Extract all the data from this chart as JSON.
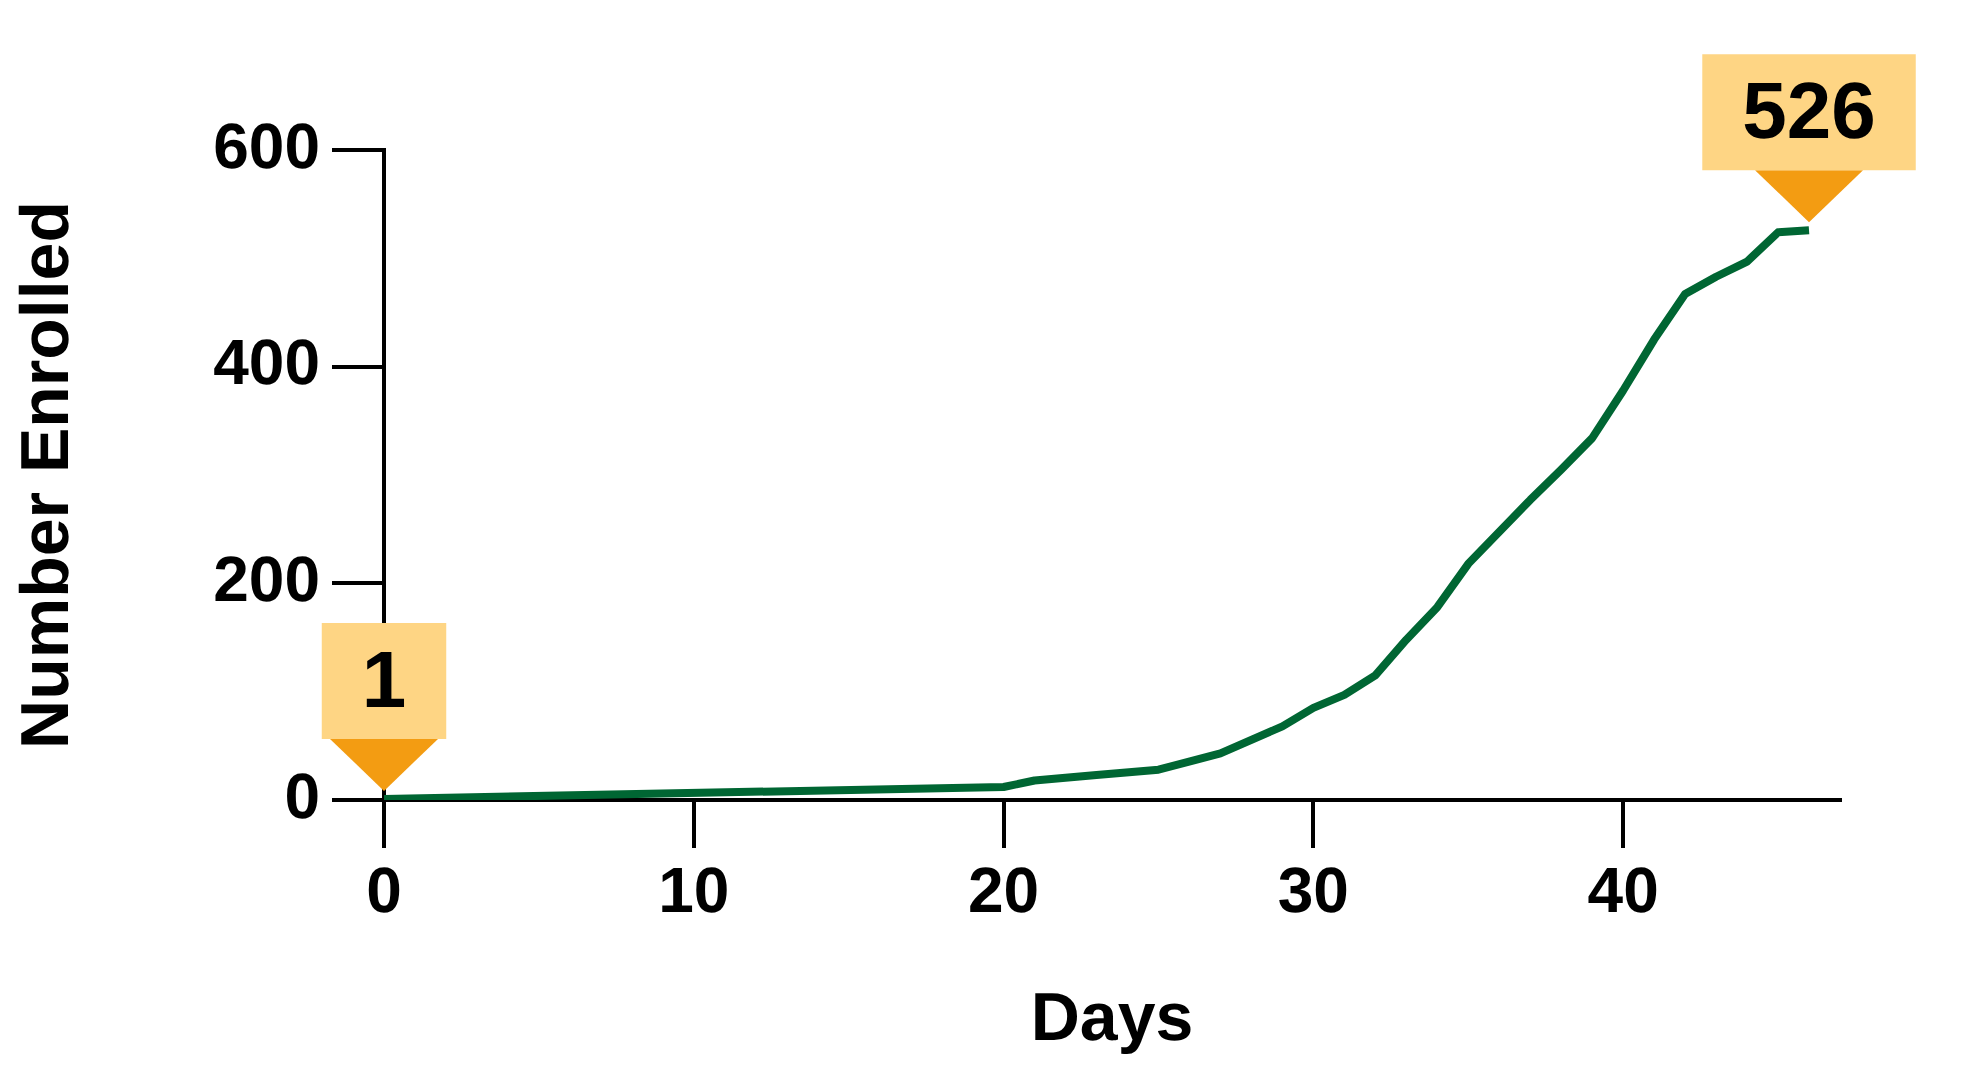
{
  "chart_data": {
    "type": "line",
    "xlabel": "Days",
    "ylabel": "Number Enrolled",
    "x": [
      0,
      20,
      21,
      23,
      25,
      27,
      29,
      30,
      31,
      32,
      33,
      34,
      35,
      37,
      38,
      39,
      40,
      41,
      42,
      43,
      44,
      45,
      46
    ],
    "series": [
      {
        "color": "#006633",
        "values": [
          1,
          12,
          18,
          23,
          28,
          43,
          68,
          85,
          97,
          115,
          148,
          178,
          218,
          277,
          305,
          334,
          378,
          425,
          467,
          483,
          497,
          524,
          526
        ]
      }
    ],
    "xlim": [
      0,
      47
    ],
    "xticks": [
      0,
      10,
      20,
      30,
      40
    ],
    "ylim": [
      0,
      600
    ],
    "yticks": [
      0,
      200,
      400,
      600
    ],
    "marker": "none",
    "legend": false,
    "annotations": [
      {
        "text": "1",
        "x": 0,
        "y": 1
      },
      {
        "text": "526",
        "x": 46,
        "y": 526
      }
    ]
  }
}
